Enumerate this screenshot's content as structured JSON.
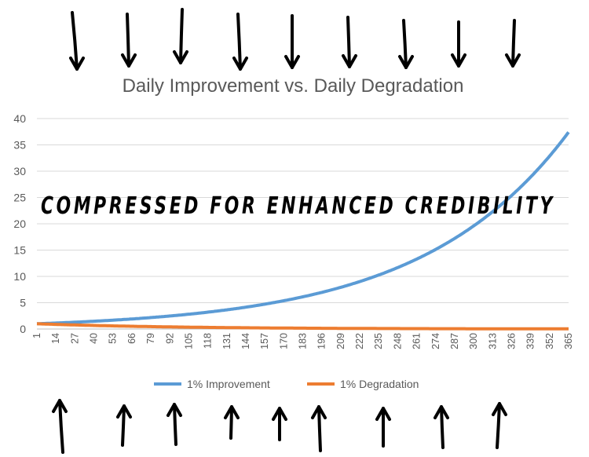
{
  "chart_data": {
    "type": "line",
    "title": "Daily Improvement vs. Daily Degradation",
    "annotation": "COMPRESSED FOR ENHANCED CREDIBILITY",
    "xlabel": "",
    "ylabel": "",
    "x_range": [
      1,
      365
    ],
    "ylim": [
      0,
      40
    ],
    "y_ticks": [
      0,
      5,
      10,
      15,
      20,
      25,
      30,
      35,
      40
    ],
    "x_tick_labels": [
      1,
      14,
      27,
      40,
      53,
      66,
      79,
      92,
      105,
      118,
      131,
      144,
      157,
      170,
      183,
      196,
      209,
      222,
      235,
      248,
      261,
      274,
      287,
      300,
      313,
      326,
      339,
      352,
      365
    ],
    "grid": true,
    "legend_position": "bottom",
    "series": [
      {
        "name": "1% Improvement",
        "color": "#5b9bd5",
        "rate": 1.01,
        "start_value": 1,
        "end_value": 37.8
      },
      {
        "name": "1% Degradation",
        "color": "#ed7d31",
        "rate": 0.99,
        "start_value": 1,
        "end_value": 0.03
      }
    ]
  }
}
